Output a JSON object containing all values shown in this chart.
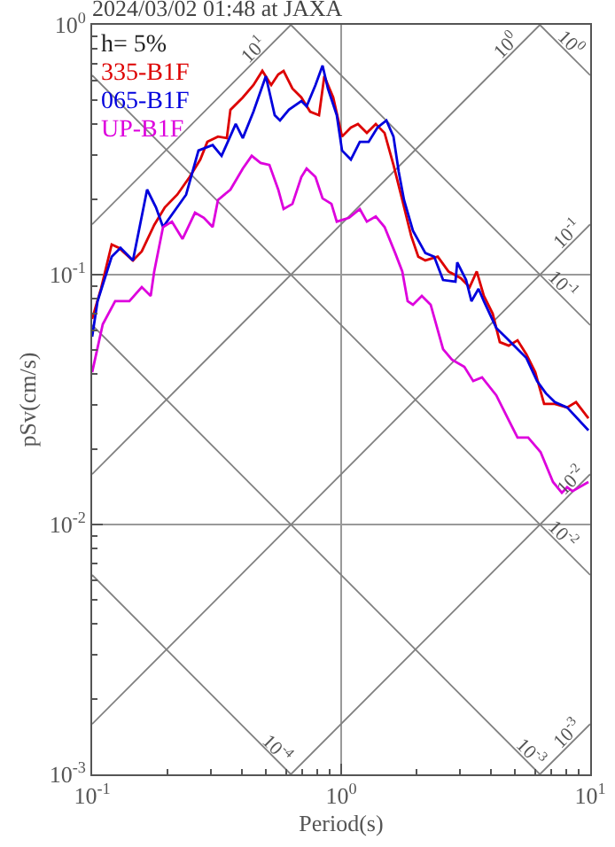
{
  "chart_data": {
    "type": "line",
    "title": "2024/03/02 01:48 at JAXA",
    "xlabel": "Period(s)",
    "ylabel": "pSv(cm/s)",
    "legend_title": "h= 5%",
    "legend": "top left",
    "log": "xy",
    "grid": true,
    "xlim": [
      0.1,
      10
    ],
    "xticks": [
      {
        "value": 0.1,
        "label": "10$^{-1}$"
      },
      {
        "value": 0.2,
        "label": null
      },
      {
        "value": 0.3,
        "label": null
      },
      {
        "value": 0.4,
        "label": null
      },
      {
        "value": 0.5,
        "label": null
      },
      {
        "value": 0.6,
        "label": null
      },
      {
        "value": 0.7,
        "label": null
      },
      {
        "value": 0.8,
        "label": null
      },
      {
        "value": 0.9,
        "label": null
      },
      {
        "value": 1,
        "label": "10$^{0}$"
      },
      {
        "value": 2,
        "label": null
      },
      {
        "value": 3,
        "label": null
      },
      {
        "value": 4,
        "label": null
      },
      {
        "value": 5,
        "label": null
      },
      {
        "value": 6,
        "label": null
      },
      {
        "value": 7,
        "label": null
      },
      {
        "value": 8,
        "label": null
      },
      {
        "value": 9,
        "label": null
      },
      {
        "value": 10,
        "label": "10$^{1}$"
      }
    ],
    "ylim": [
      0.001,
      1
    ],
    "yticks": [
      {
        "value": 0.001,
        "label": "10$^{-3}$"
      },
      {
        "value": 0.002,
        "label": null
      },
      {
        "value": 0.003,
        "label": null
      },
      {
        "value": 0.004,
        "label": null
      },
      {
        "value": 0.005,
        "label": null
      },
      {
        "value": 0.006,
        "label": null
      },
      {
        "value": 0.007,
        "label": null
      },
      {
        "value": 0.008,
        "label": null
      },
      {
        "value": 0.009,
        "label": null
      },
      {
        "value": 0.01,
        "label": "10$^{-2}$"
      },
      {
        "value": 0.02,
        "label": null
      },
      {
        "value": 0.03,
        "label": null
      },
      {
        "value": 0.04,
        "label": null
      },
      {
        "value": 0.05,
        "label": null
      },
      {
        "value": 0.06,
        "label": null
      },
      {
        "value": 0.07,
        "label": null
      },
      {
        "value": 0.08,
        "label": null
      },
      {
        "value": 0.09,
        "label": null
      },
      {
        "value": 0.1,
        "label": "10$^{-1}$"
      },
      {
        "value": 0.2,
        "label": null
      },
      {
        "value": 0.3,
        "label": null
      },
      {
        "value": 0.4,
        "label": null
      },
      {
        "value": 0.5,
        "label": null
      },
      {
        "value": 0.6,
        "label": null
      },
      {
        "value": 0.7,
        "label": null
      },
      {
        "value": 0.8,
        "label": null
      },
      {
        "value": 0.9,
        "label": null
      },
      {
        "value": 1,
        "label": "10$^{0}$"
      }
    ],
    "series": [
      {
        "color": "#808080",
        "x": [
          0.1,
          0.628
        ],
        "values": [
          0.159,
          1
        ]
      },
      {
        "color": "#808080",
        "x": [
          0.1,
          6.28
        ],
        "values": [
          0.0159,
          1
        ]
      },
      {
        "color": "#808080",
        "x": [
          0.1,
          10
        ],
        "values": [
          0.00159,
          0.159
        ]
      },
      {
        "color": "#808080",
        "x": [
          0.628,
          10
        ],
        "values": [
          0.001,
          0.0159
        ]
      },
      {
        "color": "#808080",
        "x": [
          6.28,
          10
        ],
        "values": [
          0.001,
          0.00159
        ]
      },
      {
        "color": "#808080",
        "x": [
          6.28,
          10
        ],
        "values": [
          1,
          0.628
        ]
      },
      {
        "color": "#808080",
        "x": [
          0.628,
          10
        ],
        "values": [
          1,
          0.0628
        ]
      },
      {
        "color": "#808080",
        "x": [
          0.1,
          10
        ],
        "values": [
          0.628,
          0.00628
        ]
      },
      {
        "color": "#808080",
        "x": [
          0.1,
          6.28
        ],
        "values": [
          0.0628,
          0.001
        ]
      },
      {
        "color": "#808080",
        "x": [
          0.1,
          0.628
        ],
        "values": [
          0.00628,
          0.001
        ]
      },
      {
        "name": "335-B1F",
        "color": "#dd0000",
        "x": [
          0.1,
          0.1085,
          0.1198,
          0.1279,
          0.1458,
          0.1582,
          0.1775,
          0.1958,
          0.2196,
          0.2463,
          0.2718,
          0.2901,
          0.3201,
          0.3474,
          0.3591,
          0.4027,
          0.4444,
          0.4824,
          0.5236,
          0.5588,
          0.5872,
          0.6372,
          0.6918,
          0.7506,
          0.8147,
          0.8557,
          0.929,
          1.008,
          1.094,
          1.168,
          1.268,
          1.377,
          1.494,
          1.622,
          1.76,
          1.91,
          2.04,
          2.178,
          2.443,
          2.696,
          3.022,
          3.281,
          3.503,
          3.741,
          4.06,
          4.335,
          4.706,
          5.108,
          5.544,
          6.017,
          6.53,
          7.205,
          8.081,
          8.773,
          9.84
        ],
        "values": [
          0.0665,
          0.0878,
          0.132,
          0.128,
          0.114,
          0.124,
          0.158,
          0.186,
          0.209,
          0.246,
          0.289,
          0.34,
          0.357,
          0.352,
          0.457,
          0.512,
          0.574,
          0.654,
          0.574,
          0.633,
          0.654,
          0.556,
          0.512,
          0.449,
          0.435,
          0.623,
          0.512,
          0.357,
          0.388,
          0.401,
          0.369,
          0.401,
          0.369,
          0.275,
          0.199,
          0.143,
          0.118,
          0.114,
          0.118,
          0.103,
          0.0968,
          0.0892,
          0.103,
          0.0822,
          0.0698,
          0.0537,
          0.052,
          0.0546,
          0.048,
          0.0407,
          0.0304,
          0.0304,
          0.0294,
          0.0309,
          0.0266
        ]
      },
      {
        "name": "065-B1F",
        "color": "#0000dd",
        "x": [
          0.1,
          0.1051,
          0.1198,
          0.13,
          0.1458,
          0.1662,
          0.1804,
          0.1926,
          0.2384,
          0.2673,
          0.3048,
          0.3309,
          0.3772,
          0.4027,
          0.4444,
          0.4983,
          0.5409,
          0.568,
          0.6166,
          0.6918,
          0.7264,
          0.7885,
          0.8419,
          0.8843,
          0.9601,
          1.008,
          1.094,
          1.188,
          1.289,
          1.399,
          1.519,
          1.622,
          1.703,
          1.788,
          1.942,
          2.178,
          2.364,
          2.566,
          2.877,
          2.925,
          3.175,
          3.335,
          3.561,
          3.741,
          4.197,
          4.555,
          4.943,
          5.544,
          6.117,
          6.638,
          7.205,
          8.081,
          9.84
        ],
        "values": [
          0.0565,
          0.0783,
          0.118,
          0.128,
          0.114,
          0.219,
          0.186,
          0.155,
          0.209,
          0.314,
          0.33,
          0.299,
          0.401,
          0.352,
          0.449,
          0.623,
          0.435,
          0.414,
          0.457,
          0.495,
          0.472,
          0.574,
          0.687,
          0.556,
          0.435,
          0.314,
          0.289,
          0.34,
          0.34,
          0.388,
          0.414,
          0.357,
          0.258,
          0.199,
          0.15,
          0.122,
          0.118,
          0.0952,
          0.0937,
          0.112,
          0.0952,
          0.0783,
          0.0878,
          0.0783,
          0.0612,
          0.0565,
          0.052,
          0.0464,
          0.0375,
          0.0335,
          0.0309,
          0.0294,
          0.0238
        ]
      },
      {
        "name": "UP-B1F",
        "color": "#dd00dd",
        "x": [
          0.1,
          0.1103,
          0.1237,
          0.1411,
          0.1582,
          0.1718,
          0.1775,
          0.1926,
          0.2091,
          0.2307,
          0.2588,
          0.2808,
          0.3048,
          0.3201,
          0.3591,
          0.4027,
          0.4372,
          0.4746,
          0.5148,
          0.5588,
          0.5872,
          0.6372,
          0.6918,
          0.7264,
          0.7885,
          0.8419,
          0.9139,
          0.9601,
          1.076,
          1.188,
          1.268,
          1.377,
          1.494,
          1.648,
          1.76,
          1.849,
          1.942,
          2.108,
          2.288,
          2.566,
          2.785,
          3.123,
          3.39,
          3.679,
          4.197,
          4.706,
          5.108,
          5.636,
          6.32,
          7.09,
          7.693,
          8.081,
          8.49,
          9.84
        ],
        "values": [
          0.0407,
          0.0633,
          0.0783,
          0.0783,
          0.0892,
          0.0822,
          0.103,
          0.155,
          0.163,
          0.139,
          0.177,
          0.169,
          0.155,
          0.199,
          0.219,
          0.266,
          0.299,
          0.28,
          0.275,
          0.219,
          0.183,
          0.192,
          0.246,
          0.266,
          0.246,
          0.202,
          0.192,
          0.163,
          0.169,
          0.183,
          0.163,
          0.171,
          0.155,
          0.122,
          0.103,
          0.0783,
          0.0758,
          0.0822,
          0.0758,
          0.0503,
          0.0457,
          0.0428,
          0.0375,
          0.0388,
          0.0329,
          0.0262,
          0.0223,
          0.0223,
          0.0195,
          0.0148,
          0.0134,
          0.0141,
          0.0136,
          0.0148
        ]
      }
    ],
    "annotations": [
      {
        "text": "10$^{1}$",
        "x": 0.444,
        "y": 0.707
      },
      {
        "text": "10$^{0}$",
        "x": 4.56,
        "y": 0.726
      },
      {
        "text": "10$^{-1}$",
        "x": 8.08,
        "y": 0.1286
      },
      {
        "text": "10$^{-2}$",
        "x": 8.35,
        "y": 0.01329
      },
      {
        "text": "10$^{-3}$",
        "x": 8.08,
        "y": 0.001286
      },
      {
        "text": "10$^{0}$",
        "x": 8.35,
        "y": 0.752
      },
      {
        "text": "10$^{-1}$",
        "x": 7.82,
        "y": 0.0803
      },
      {
        "text": "10$^{-2}$",
        "x": 7.82,
        "y": 0.00803
      },
      {
        "text": "10$^{-3}$",
        "x": 5.82,
        "y": 0.00108
      },
      {
        "text": "10$^{-4}$",
        "x": 0.559,
        "y": 0.00112
      }
    ]
  }
}
